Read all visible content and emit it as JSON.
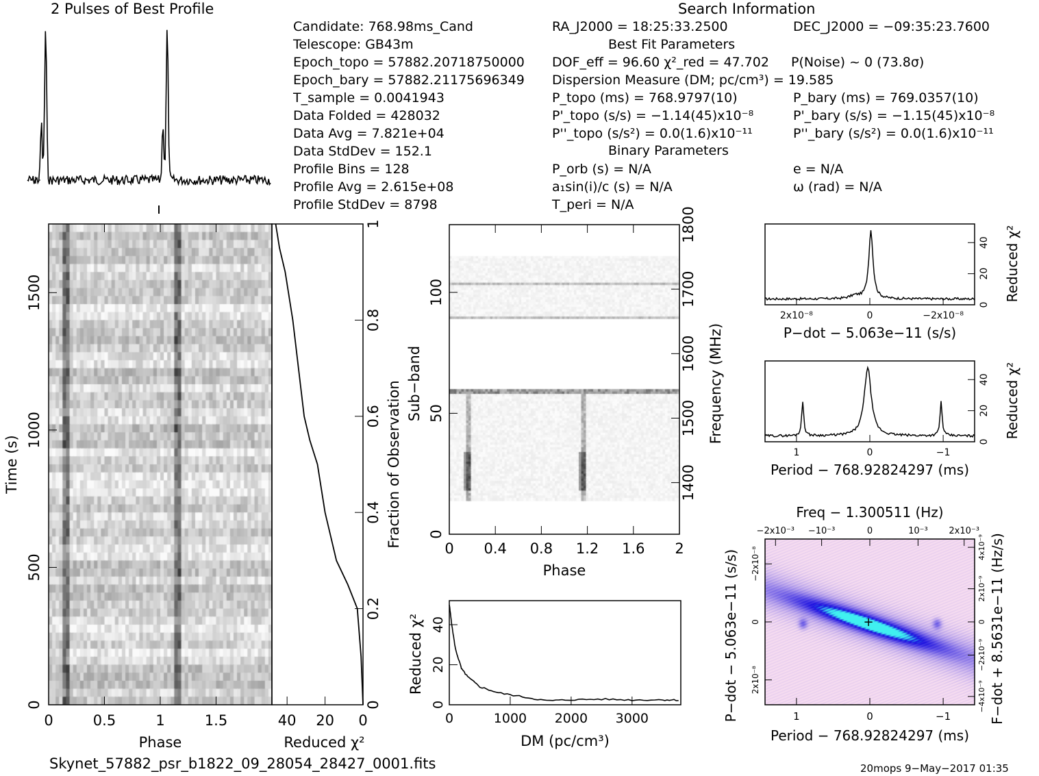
{
  "header": {
    "profile_title": "2 Pulses of Best Profile",
    "search_title": "Search Information",
    "best_fit_title": "Best Fit Parameters",
    "binary_title": "Binary Parameters"
  },
  "info": {
    "candidate": "Candidate:  768.98ms_Cand",
    "telescope": "Telescope:  GB43m",
    "epoch_topo": "Epoch_topo = 57882.20718750000",
    "epoch_bary": "Epoch_bary = 57882.21175696349",
    "t_sample": "T_sample      =  0.0041943",
    "data_folded": "Data Folded    =  428032",
    "data_avg": "Data Avg       =  7.821e+04",
    "data_stddev": "Data StdDev    =  152.1",
    "profile_bins": "Profile Bins   =  128",
    "profile_avg": "Profile Avg    =  2.615e+08",
    "profile_stddev": "Profile StdDev =  8798"
  },
  "search": {
    "ra": "RA_J2000 = 18:25:33.2500",
    "dec": "DEC_J2000 = −09:35:23.7600",
    "dof_chi": "DOF_eff = 96.60  χ²_red = 47.702",
    "pnoise": "P(Noise) ~ 0   (73.8σ)",
    "dm": "Dispersion Measure (DM; pc/cm³) = 19.585",
    "p_topo": "P_topo (ms) =  768.9797(10)",
    "p_bary": "P_bary (ms) =  769.0357(10)",
    "pd_topo": "P'_topo (s/s) = −1.14(45)x10⁻⁸",
    "pd_bary": "P'_bary (s/s) = −1.15(45)x10⁻⁸",
    "pdd_topo": "P''_topo (s/s²) = 0.0(1.6)x10⁻¹¹",
    "pdd_bary": "P''_bary (s/s²) = 0.0(1.6)x10⁻¹¹",
    "p_orb": "P_orb (s) = N/A",
    "e": "e = N/A",
    "a1sini": "a₁sin(i)/c (s) = N/A",
    "omega": "ω (rad) = N/A",
    "t_peri": "T_peri = N/A"
  },
  "footer": {
    "filename": "Skynet_57882_psr_b1822_09_28054_28427_0001.fits",
    "stamp": "20mops  9−May−2017 01:35"
  },
  "colors": {
    "ink": "#000000",
    "grid_dark": "#333333",
    "ppdot_bg": "#f6dcf0",
    "ppdot_blue": "#1a10e0",
    "ppdot_cyan": "#40f0f0"
  },
  "chart_data": [
    {
      "type": "line",
      "id": "profile",
      "title": "2 Pulses of Best Profile",
      "x_range": [
        0,
        2
      ],
      "peaks": [
        {
          "phase": 0.15,
          "height": 1.0,
          "precursor": 0.55
        },
        {
          "phase": 1.15,
          "height": 1.0,
          "precursor": 0.55
        }
      ]
    },
    {
      "type": "heatmap",
      "id": "time_phase",
      "xlabel": "Phase",
      "ylabel": "Time (s)",
      "x_ticks": [
        "0",
        "0.5",
        "1",
        "1.5"
      ],
      "y_ticks": [
        "0",
        "500",
        "1000",
        "1500"
      ],
      "x_range": [
        0,
        2
      ],
      "y_range": [
        0,
        1750
      ]
    },
    {
      "type": "line",
      "id": "chi_vs_time",
      "xlabel": "Reduced χ²",
      "ylabel": "Fraction of Observation",
      "x_ticks": [
        "40",
        "20",
        "0"
      ],
      "y_ticks": [
        "0",
        "0.2",
        "0.4",
        "0.6",
        "0.8",
        "1"
      ],
      "points": [
        [
          0,
          0
        ],
        [
          1,
          0.1
        ],
        [
          3,
          0.2
        ],
        [
          8,
          0.25
        ],
        [
          14,
          0.3
        ],
        [
          20,
          0.4
        ],
        [
          24,
          0.5
        ],
        [
          28,
          0.55
        ],
        [
          31,
          0.6
        ],
        [
          34,
          0.7
        ],
        [
          37,
          0.8
        ],
        [
          41,
          0.9
        ],
        [
          44,
          0.95
        ],
        [
          46,
          1.0
        ]
      ]
    },
    {
      "type": "heatmap",
      "id": "subband_phase",
      "xlabel": "Phase",
      "ylabel": "Sub−band",
      "y2label": "Frequency (MHz)",
      "x_ticks": [
        "0",
        "0.4",
        "0.8",
        "1.2",
        "1.6",
        "2"
      ],
      "y_ticks": [
        "0",
        "50",
        "100"
      ],
      "y2_ticks": [
        "1400",
        "1500",
        "1600",
        "1700",
        "1800"
      ]
    },
    {
      "type": "line",
      "id": "dm_chi",
      "xlabel": "DM (pc/cm³)",
      "ylabel": "Reduced χ²",
      "x_ticks": [
        "0",
        "1000",
        "2000",
        "3000"
      ],
      "y_ticks": [
        "0",
        "20",
        "40"
      ],
      "points": [
        [
          0,
          50
        ],
        [
          50,
          38
        ],
        [
          100,
          28
        ],
        [
          200,
          18
        ],
        [
          300,
          14
        ],
        [
          500,
          9
        ],
        [
          800,
          6
        ],
        [
          1200,
          4
        ],
        [
          1600,
          2
        ],
        [
          2000,
          2.5
        ],
        [
          2500,
          2.8
        ],
        [
          3000,
          2.4
        ],
        [
          3500,
          2.5
        ],
        [
          3800,
          2.3
        ]
      ]
    },
    {
      "type": "line",
      "id": "pdot_chi",
      "xlabel": "P−dot − 5.063e−11 (s/s)",
      "ylabel": "Reduced χ²",
      "x_ticks": [
        "2x10⁻⁸",
        "0",
        "−2x10⁻⁸"
      ],
      "y_ticks": [
        "0",
        "20",
        "40"
      ]
    },
    {
      "type": "line",
      "id": "period_chi",
      "xlabel": "Period − 768.92824297 (ms)",
      "ylabel": "Reduced χ²",
      "x_ticks": [
        "1",
        "0",
        "−1"
      ],
      "y_ticks": [
        "0",
        "20",
        "40"
      ]
    },
    {
      "type": "heatmap",
      "id": "ppdot",
      "title": "Freq − 1.300511 (Hz)",
      "xlabel": "Period − 768.92824297 (ms)",
      "ylabel": "P−dot − 5.063e−11 (s/s)",
      "y2label": "F−dot + 8.5631e−11 (Hz/s)",
      "x_ticks": [
        "1",
        "0",
        "−1"
      ],
      "top_ticks": [
        "−2x10⁻³",
        "−10⁻³",
        "0",
        "10⁻³",
        "2x10⁻³"
      ],
      "y_ticks": [
        "−2x10⁻⁸",
        "0",
        "2x10⁻⁸"
      ],
      "y2_ticks": [
        "4x10⁻⁹",
        "2x10⁻⁹",
        "0",
        "−2x10⁻⁹",
        "−4x10⁻⁹"
      ]
    }
  ]
}
